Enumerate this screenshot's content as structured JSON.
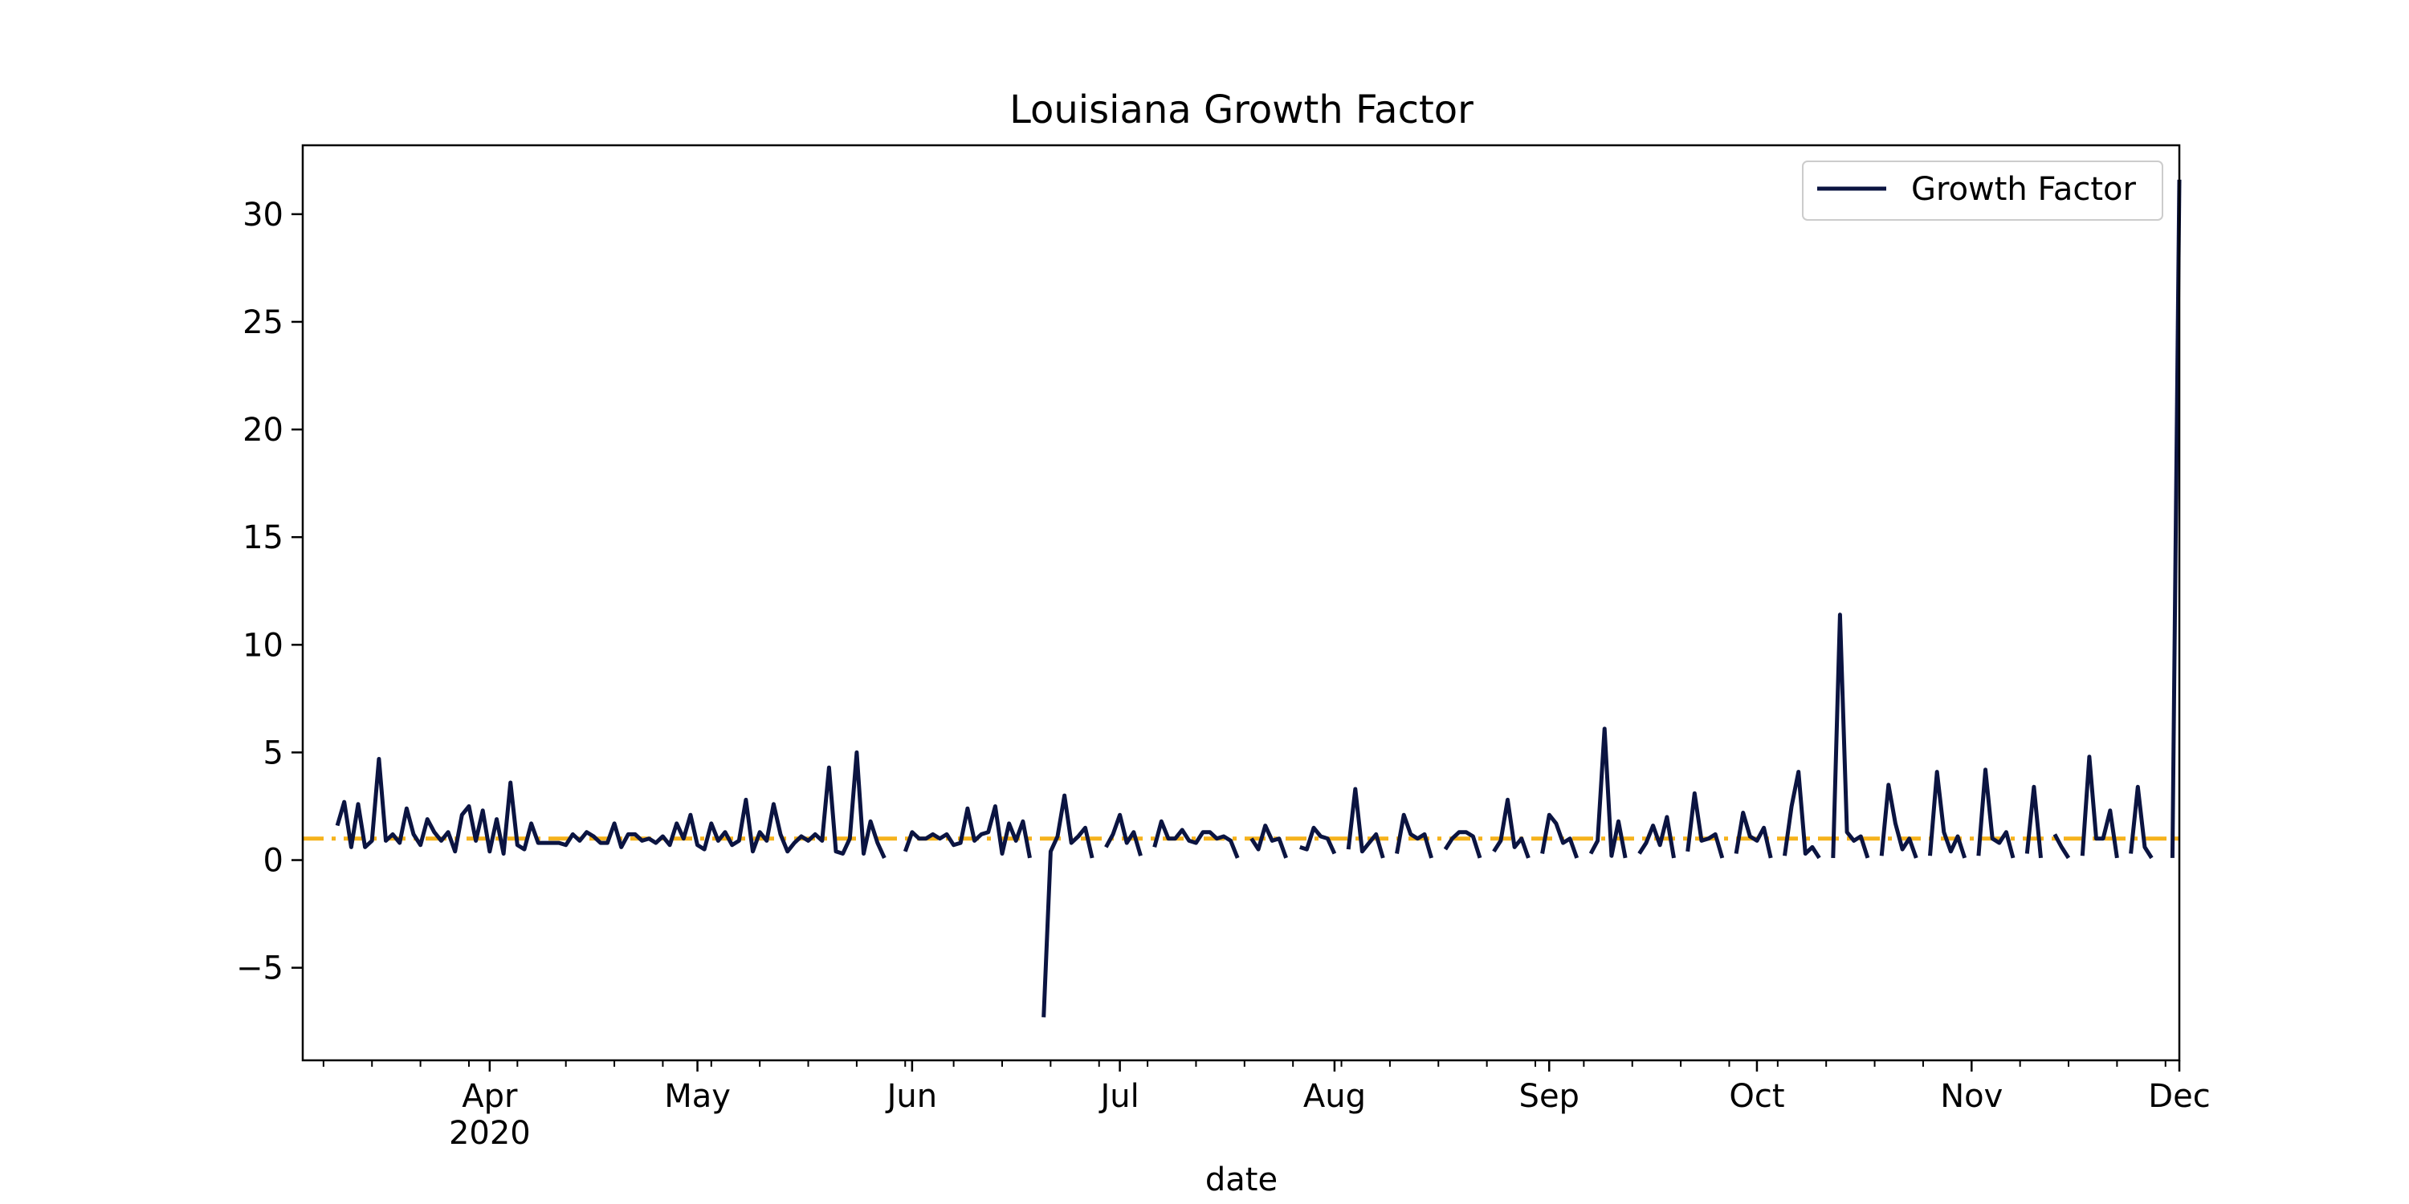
{
  "chart_data": {
    "type": "line",
    "title": "Louisiana Growth Factor",
    "xlabel": "date",
    "ylabel": "",
    "ylim": [
      -9.3,
      33.2
    ],
    "xlim": [
      "2020-03-05",
      "2020-12-01"
    ],
    "grid": false,
    "legend": "top-right",
    "x_ticks": [
      {
        "date": "2020-04-01",
        "label": "Apr",
        "sub": "2020"
      },
      {
        "date": "2020-05-01",
        "label": "May"
      },
      {
        "date": "2020-06-01",
        "label": "Jun"
      },
      {
        "date": "2020-07-01",
        "label": "Jul"
      },
      {
        "date": "2020-08-01",
        "label": "Aug"
      },
      {
        "date": "2020-09-01",
        "label": "Sep"
      },
      {
        "date": "2020-10-01",
        "label": "Oct"
      },
      {
        "date": "2020-11-01",
        "label": "Nov"
      },
      {
        "date": "2020-12-01",
        "label": "Dec"
      }
    ],
    "y_ticks": [
      -5,
      0,
      5,
      10,
      15,
      20,
      25,
      30
    ],
    "reference_line": {
      "y": 1,
      "color": "#f5b21b",
      "style": "dashdot"
    },
    "series": [
      {
        "name": "Growth Factor",
        "color": "#0b1441",
        "points": [
          [
            "2020-03-10",
            1.6
          ],
          [
            "2020-03-11",
            2.7
          ],
          [
            "2020-03-12",
            0.6
          ],
          [
            "2020-03-13",
            2.6
          ],
          [
            "2020-03-14",
            0.6
          ],
          [
            "2020-03-15",
            0.9
          ],
          [
            "2020-03-16",
            4.7
          ],
          [
            "2020-03-17",
            0.9
          ],
          [
            "2020-03-18",
            1.2
          ],
          [
            "2020-03-19",
            0.8
          ],
          [
            "2020-03-20",
            2.4
          ],
          [
            "2020-03-21",
            1.2
          ],
          [
            "2020-03-22",
            0.7
          ],
          [
            "2020-03-23",
            1.9
          ],
          [
            "2020-03-24",
            1.3
          ],
          [
            "2020-03-25",
            0.9
          ],
          [
            "2020-03-26",
            1.3
          ],
          [
            "2020-03-27",
            0.4
          ],
          [
            "2020-03-28",
            2.1
          ],
          [
            "2020-03-29",
            2.5
          ],
          [
            "2020-03-30",
            0.9
          ],
          [
            "2020-03-31",
            2.3
          ],
          [
            "2020-04-01",
            0.4
          ],
          [
            "2020-04-02",
            1.9
          ],
          [
            "2020-04-03",
            0.3
          ],
          [
            "2020-04-04",
            3.6
          ],
          [
            "2020-04-05",
            0.7
          ],
          [
            "2020-04-06",
            0.5
          ],
          [
            "2020-04-07",
            1.7
          ],
          [
            "2020-04-08",
            0.8
          ],
          [
            "2020-04-09",
            0.8
          ],
          [
            "2020-04-10",
            0.8
          ],
          [
            "2020-04-11",
            0.8
          ],
          [
            "2020-04-12",
            0.7
          ],
          [
            "2020-04-13",
            1.2
          ],
          [
            "2020-04-14",
            0.9
          ],
          [
            "2020-04-15",
            1.3
          ],
          [
            "2020-04-16",
            1.1
          ],
          [
            "2020-04-17",
            0.8
          ],
          [
            "2020-04-18",
            0.8
          ],
          [
            "2020-04-19",
            1.7
          ],
          [
            "2020-04-20",
            0.6
          ],
          [
            "2020-04-21",
            1.2
          ],
          [
            "2020-04-22",
            1.2
          ],
          [
            "2020-04-23",
            0.9
          ],
          [
            "2020-04-24",
            1.0
          ],
          [
            "2020-04-25",
            0.8
          ],
          [
            "2020-04-26",
            1.1
          ],
          [
            "2020-04-27",
            0.7
          ],
          [
            "2020-04-28",
            1.7
          ],
          [
            "2020-04-29",
            1.0
          ],
          [
            "2020-04-30",
            2.1
          ],
          [
            "2020-05-01",
            0.7
          ],
          [
            "2020-05-02",
            0.5
          ],
          [
            "2020-05-03",
            1.7
          ],
          [
            "2020-05-04",
            0.9
          ],
          [
            "2020-05-05",
            1.3
          ],
          [
            "2020-05-06",
            0.7
          ],
          [
            "2020-05-07",
            0.9
          ],
          [
            "2020-05-08",
            2.8
          ],
          [
            "2020-05-09",
            0.4
          ],
          [
            "2020-05-10",
            1.3
          ],
          [
            "2020-05-11",
            0.9
          ],
          [
            "2020-05-12",
            2.6
          ],
          [
            "2020-05-13",
            1.2
          ],
          [
            "2020-05-14",
            0.4
          ],
          [
            "2020-05-15",
            0.8
          ],
          [
            "2020-05-16",
            1.1
          ],
          [
            "2020-05-17",
            0.9
          ],
          [
            "2020-05-18",
            1.2
          ],
          [
            "2020-05-19",
            0.9
          ],
          [
            "2020-05-20",
            4.3
          ],
          [
            "2020-05-21",
            0.4
          ],
          [
            "2020-05-22",
            0.3
          ],
          [
            "2020-05-23",
            1.0
          ],
          [
            "2020-05-24",
            5.0
          ],
          [
            "2020-05-25",
            0.3
          ],
          [
            "2020-05-26",
            1.8
          ],
          [
            "2020-05-27",
            0.8
          ],
          [
            "2020-05-28",
            0.1
          ],
          null,
          [
            "2020-05-31",
            0.4
          ],
          [
            "2020-06-01",
            1.3
          ],
          [
            "2020-06-02",
            1.0
          ],
          [
            "2020-06-03",
            1.0
          ],
          [
            "2020-06-04",
            1.2
          ],
          [
            "2020-06-05",
            1.0
          ],
          [
            "2020-06-06",
            1.2
          ],
          [
            "2020-06-07",
            0.7
          ],
          [
            "2020-06-08",
            0.8
          ],
          [
            "2020-06-09",
            2.4
          ],
          [
            "2020-06-10",
            0.9
          ],
          [
            "2020-06-11",
            1.2
          ],
          [
            "2020-06-12",
            1.3
          ],
          [
            "2020-06-13",
            2.5
          ],
          [
            "2020-06-14",
            0.3
          ],
          [
            "2020-06-15",
            1.7
          ],
          [
            "2020-06-16",
            0.9
          ],
          [
            "2020-06-17",
            1.8
          ],
          [
            "2020-06-18",
            0.1
          ],
          null,
          [
            "2020-06-20",
            -7.3
          ],
          [
            "2020-06-21",
            0.4
          ],
          [
            "2020-06-22",
            1.1
          ],
          [
            "2020-06-23",
            3.0
          ],
          [
            "2020-06-24",
            0.8
          ],
          [
            "2020-06-25",
            1.1
          ],
          [
            "2020-06-26",
            1.5
          ],
          [
            "2020-06-27",
            0.1
          ],
          null,
          [
            "2020-06-29",
            0.6
          ],
          [
            "2020-06-30",
            1.2
          ],
          [
            "2020-07-01",
            2.1
          ],
          [
            "2020-07-02",
            0.8
          ],
          [
            "2020-07-03",
            1.3
          ],
          [
            "2020-07-04",
            0.2
          ],
          null,
          [
            "2020-07-06",
            0.6
          ],
          [
            "2020-07-07",
            1.8
          ],
          [
            "2020-07-08",
            1.0
          ],
          [
            "2020-07-09",
            1.0
          ],
          [
            "2020-07-10",
            1.4
          ],
          [
            "2020-07-11",
            0.9
          ],
          [
            "2020-07-12",
            0.8
          ],
          [
            "2020-07-13",
            1.3
          ],
          [
            "2020-07-14",
            1.3
          ],
          [
            "2020-07-15",
            1.0
          ],
          [
            "2020-07-16",
            1.1
          ],
          [
            "2020-07-17",
            0.9
          ],
          [
            "2020-07-18",
            0.1
          ],
          null,
          [
            "2020-07-20",
            1.0
          ],
          [
            "2020-07-21",
            0.5
          ],
          [
            "2020-07-22",
            1.6
          ],
          [
            "2020-07-23",
            0.9
          ],
          [
            "2020-07-24",
            1.0
          ],
          [
            "2020-07-25",
            0.1
          ],
          null,
          [
            "2020-07-27",
            0.6
          ],
          [
            "2020-07-28",
            0.5
          ],
          [
            "2020-07-29",
            1.5
          ],
          [
            "2020-07-30",
            1.1
          ],
          [
            "2020-07-31",
            1.0
          ],
          [
            "2020-08-01",
            0.3
          ],
          null,
          [
            "2020-08-03",
            0.5
          ],
          [
            "2020-08-04",
            3.3
          ],
          [
            "2020-08-05",
            0.4
          ],
          [
            "2020-08-06",
            0.8
          ],
          [
            "2020-08-07",
            1.2
          ],
          [
            "2020-08-08",
            0.1
          ],
          null,
          [
            "2020-08-10",
            0.3
          ],
          [
            "2020-08-11",
            2.1
          ],
          [
            "2020-08-12",
            1.2
          ],
          [
            "2020-08-13",
            1.0
          ],
          [
            "2020-08-14",
            1.2
          ],
          [
            "2020-08-15",
            0.1
          ],
          null,
          [
            "2020-08-17",
            0.5
          ],
          [
            "2020-08-18",
            1.0
          ],
          [
            "2020-08-19",
            1.3
          ],
          [
            "2020-08-20",
            1.3
          ],
          [
            "2020-08-21",
            1.1
          ],
          [
            "2020-08-22",
            0.1
          ],
          null,
          [
            "2020-08-24",
            0.4
          ],
          [
            "2020-08-25",
            0.9
          ],
          [
            "2020-08-26",
            2.8
          ],
          [
            "2020-08-27",
            0.6
          ],
          [
            "2020-08-28",
            1.0
          ],
          [
            "2020-08-29",
            0.1
          ],
          null,
          [
            "2020-08-31",
            0.3
          ],
          [
            "2020-09-01",
            2.1
          ],
          [
            "2020-09-02",
            1.7
          ],
          [
            "2020-09-03",
            0.8
          ],
          [
            "2020-09-04",
            1.0
          ],
          [
            "2020-09-05",
            0.1
          ],
          null,
          [
            "2020-09-07",
            0.3
          ],
          [
            "2020-09-08",
            0.9
          ],
          [
            "2020-09-09",
            6.1
          ],
          [
            "2020-09-10",
            0.2
          ],
          [
            "2020-09-11",
            1.8
          ],
          [
            "2020-09-12",
            0.1
          ],
          null,
          [
            "2020-09-14",
            0.3
          ],
          [
            "2020-09-15",
            0.8
          ],
          [
            "2020-09-16",
            1.6
          ],
          [
            "2020-09-17",
            0.7
          ],
          [
            "2020-09-18",
            2.0
          ],
          [
            "2020-09-19",
            0.1
          ],
          null,
          [
            "2020-09-21",
            0.4
          ],
          [
            "2020-09-22",
            3.1
          ],
          [
            "2020-09-23",
            0.9
          ],
          [
            "2020-09-24",
            1.0
          ],
          [
            "2020-09-25",
            1.2
          ],
          [
            "2020-09-26",
            0.1
          ],
          null,
          [
            "2020-09-28",
            0.3
          ],
          [
            "2020-09-29",
            2.2
          ],
          [
            "2020-09-30",
            1.1
          ],
          [
            "2020-10-01",
            0.9
          ],
          [
            "2020-10-02",
            1.5
          ],
          [
            "2020-10-03",
            0.1
          ],
          null,
          [
            "2020-10-05",
            0.2
          ],
          [
            "2020-10-06",
            2.5
          ],
          [
            "2020-10-07",
            4.1
          ],
          [
            "2020-10-08",
            0.3
          ],
          [
            "2020-10-09",
            0.6
          ],
          [
            "2020-10-10",
            0.1
          ],
          null,
          [
            "2020-10-12",
            0.1
          ],
          [
            "2020-10-13",
            11.4
          ],
          [
            "2020-10-14",
            1.3
          ],
          [
            "2020-10-15",
            0.9
          ],
          [
            "2020-10-16",
            1.1
          ],
          [
            "2020-10-17",
            0.1
          ],
          null,
          [
            "2020-10-19",
            0.2
          ],
          [
            "2020-10-20",
            3.5
          ],
          [
            "2020-10-21",
            1.7
          ],
          [
            "2020-10-22",
            0.5
          ],
          [
            "2020-10-23",
            1.0
          ],
          [
            "2020-10-24",
            0.1
          ],
          null,
          [
            "2020-10-26",
            0.2
          ],
          [
            "2020-10-27",
            4.1
          ],
          [
            "2020-10-28",
            1.3
          ],
          [
            "2020-10-29",
            0.4
          ],
          [
            "2020-10-30",
            1.1
          ],
          [
            "2020-10-31",
            0.1
          ],
          null,
          [
            "2020-11-02",
            0.2
          ],
          [
            "2020-11-03",
            4.2
          ],
          [
            "2020-11-04",
            1.0
          ],
          [
            "2020-11-05",
            0.8
          ],
          [
            "2020-11-06",
            1.3
          ],
          [
            "2020-11-07",
            0.1
          ],
          null,
          [
            "2020-11-09",
            0.3
          ],
          [
            "2020-11-10",
            3.4
          ],
          [
            "2020-11-11",
            0.1
          ],
          null,
          [
            "2020-11-13",
            1.2
          ],
          [
            "2020-11-14",
            0.6
          ],
          [
            "2020-11-15",
            0.1
          ],
          null,
          [
            "2020-11-17",
            0.2
          ],
          [
            "2020-11-18",
            4.8
          ],
          [
            "2020-11-19",
            1.0
          ],
          [
            "2020-11-20",
            1.0
          ],
          [
            "2020-11-21",
            2.3
          ],
          [
            "2020-11-22",
            0.1
          ],
          null,
          [
            "2020-11-24",
            0.3
          ],
          [
            "2020-11-25",
            3.4
          ],
          [
            "2020-11-26",
            0.6
          ],
          [
            "2020-11-27",
            0.1
          ],
          null,
          [
            "2020-11-30",
            0.1
          ],
          [
            "2020-12-01",
            31.6
          ]
        ]
      }
    ]
  }
}
